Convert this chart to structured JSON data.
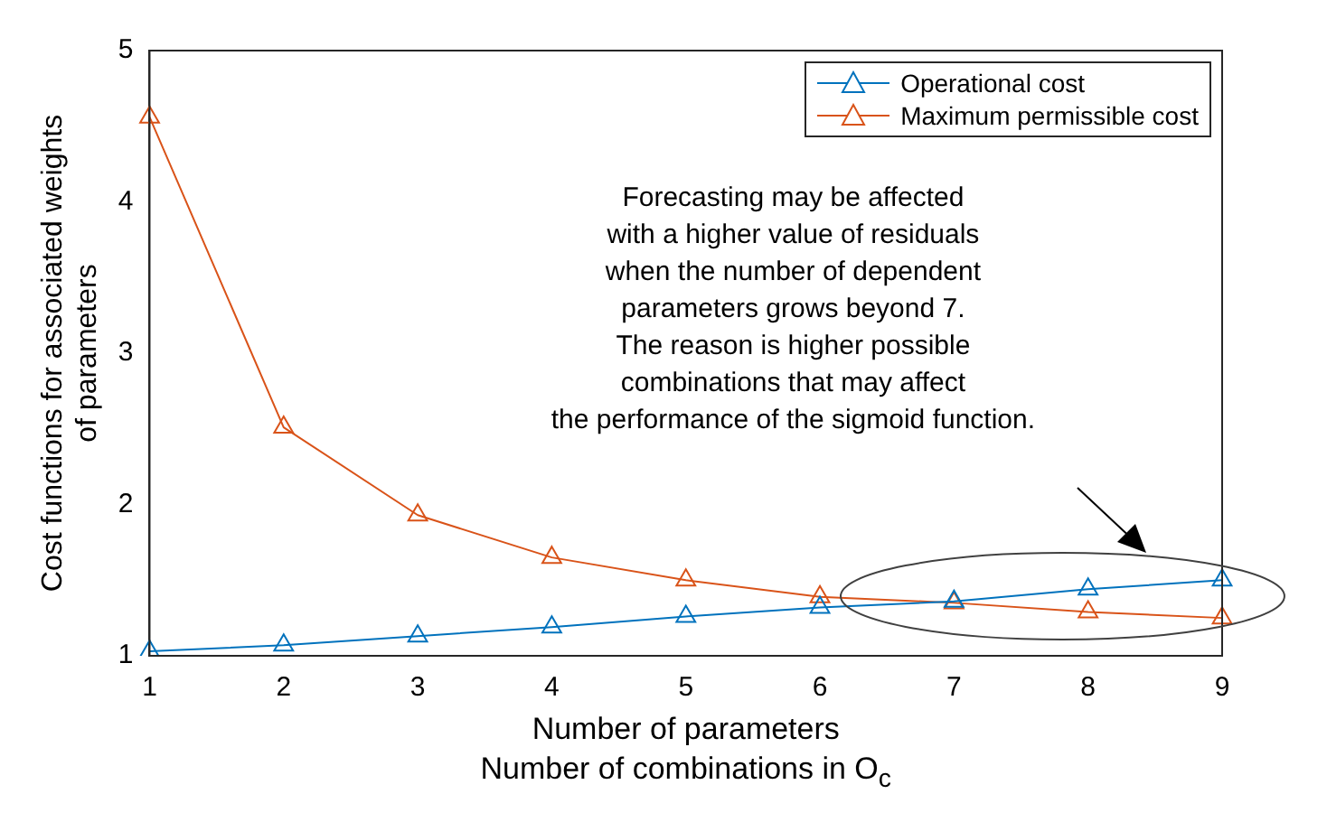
{
  "chart_data": {
    "type": "line",
    "ylabel": "Cost functions for associated weights\nof parameters",
    "xlabel": "Number of parameters\nNumber of combinations in O$_{c}$",
    "categories": [
      "1",
      "2",
      "3",
      "4",
      "5",
      "6",
      "7",
      "8",
      "9"
    ],
    "series": [
      {
        "name": "Operational cost",
        "color": "#0072bd",
        "values": [
          1.03,
          1.07,
          1.13,
          1.19,
          1.26,
          1.32,
          1.36,
          1.44,
          1.5
        ]
      },
      {
        "name": "Maximum permissible cost",
        "color": "#d95319",
        "values": [
          4.56,
          2.51,
          1.93,
          1.65,
          1.5,
          1.39,
          1.35,
          1.29,
          1.25
        ]
      }
    ],
    "ylim": [
      1,
      5
    ],
    "yticks": [
      1,
      2,
      3,
      4,
      5
    ],
    "grid": false,
    "legend": "top right",
    "marker": "triangle",
    "line_style": "solid",
    "annotations": [
      "Forecasting may be affected\nwith a higher value of residuals\nwhen the number of dependent\nparameters grows beyond 7.\nThe reason is higher possible\ncombinations that may affect\nthe performance of the sigmoid function."
    ]
  }
}
